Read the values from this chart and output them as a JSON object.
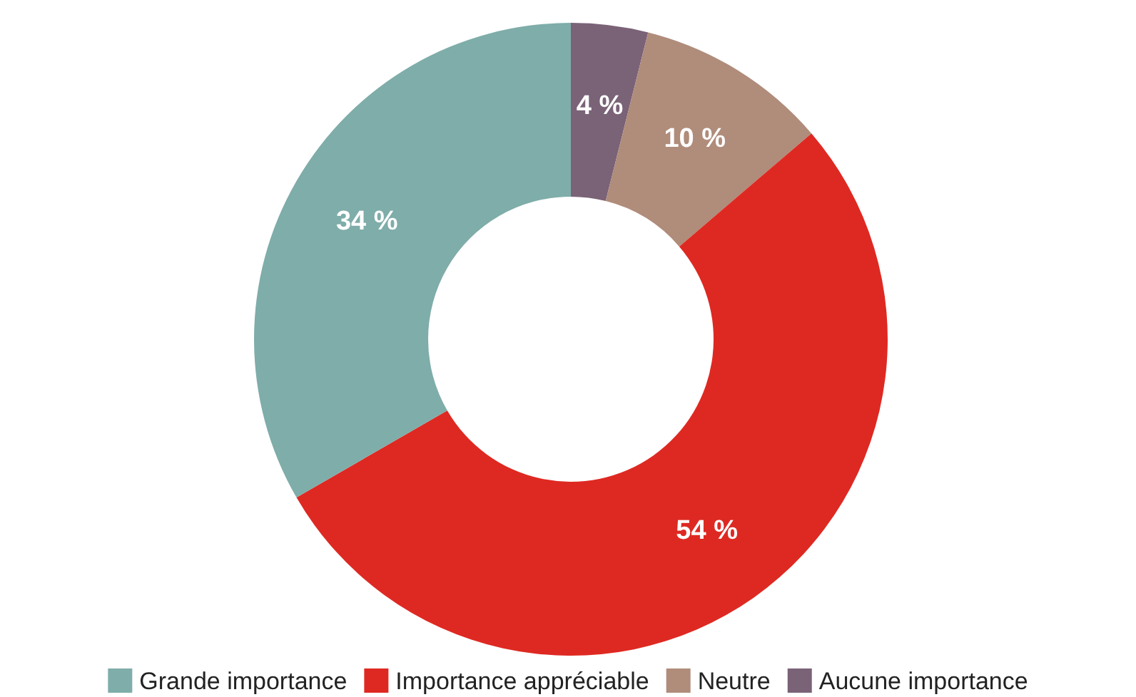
{
  "chart_data": {
    "type": "donut",
    "categories": [
      "Grande importance",
      "Importance appréciable",
      "Neutre",
      "Aucune importance"
    ],
    "values": [
      34,
      54,
      10,
      4
    ],
    "colors": [
      "#7fada9",
      "#de2922",
      "#b08c7a",
      "#7a6277"
    ],
    "value_labels": [
      "34 %",
      "54 %",
      "10 %",
      "4 %"
    ],
    "legend": "bottom"
  }
}
